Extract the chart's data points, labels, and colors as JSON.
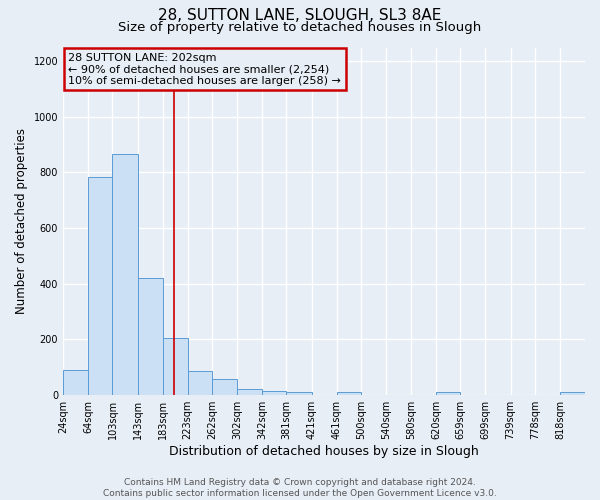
{
  "title1": "28, SUTTON LANE, SLOUGH, SL3 8AE",
  "title2": "Size of property relative to detached houses in Slough",
  "xlabel": "Distribution of detached houses by size in Slough",
  "ylabel": "Number of detached properties",
  "bins": [
    24,
    64,
    103,
    143,
    183,
    223,
    262,
    302,
    342,
    381,
    421,
    461,
    500,
    540,
    580,
    620,
    659,
    699,
    739,
    778,
    818,
    858
  ],
  "bin_labels": [
    "24sqm",
    "64sqm",
    "103sqm",
    "143sqm",
    "183sqm",
    "223sqm",
    "262sqm",
    "302sqm",
    "342sqm",
    "381sqm",
    "421sqm",
    "461sqm",
    "500sqm",
    "540sqm",
    "580sqm",
    "620sqm",
    "659sqm",
    "699sqm",
    "739sqm",
    "778sqm",
    "818sqm"
  ],
  "counts": [
    90,
    785,
    865,
    420,
    205,
    85,
    55,
    20,
    12,
    10,
    0,
    10,
    0,
    0,
    0,
    10,
    0,
    0,
    0,
    0,
    10
  ],
  "bar_facecolor": "#cce0f5",
  "bar_edgecolor": "#5b9bd5",
  "bg_color": "#e8eef6",
  "grid_color": "#ffffff",
  "vline_x": 202,
  "vline_color": "#cc0000",
  "ann_line1": "28 SUTTON LANE: 202sqm",
  "ann_line2": "← 90% of detached houses are smaller (2,254)",
  "ann_line3": "10% of semi-detached houses are larger (258) →",
  "annotation_box_color": "#cc0000",
  "ylim": [
    0,
    1250
  ],
  "yticks": [
    0,
    200,
    400,
    600,
    800,
    1000,
    1200
  ],
  "footer_text": "Contains HM Land Registry data © Crown copyright and database right 2024.\nContains public sector information licensed under the Open Government Licence v3.0.",
  "title1_fontsize": 11,
  "title2_fontsize": 9.5,
  "xlabel_fontsize": 9,
  "ylabel_fontsize": 8.5,
  "tick_fontsize": 7,
  "footer_fontsize": 6.5,
  "ann_fontsize": 8
}
